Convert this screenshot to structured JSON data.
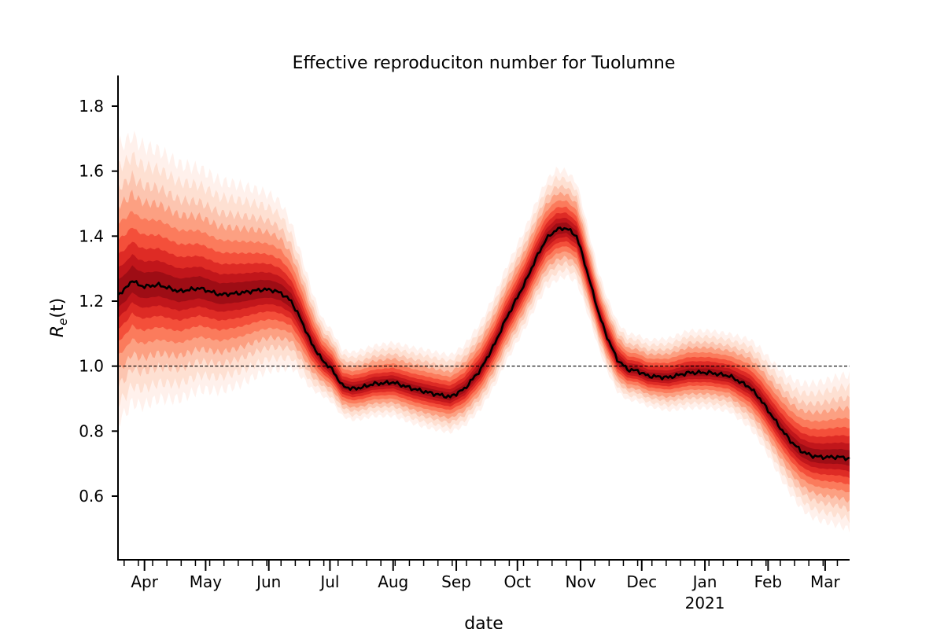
{
  "chart_data": {
    "type": "area",
    "title": "Effective reproduciton number for Tuolumne",
    "xlabel": "date",
    "ylabel_base": "R",
    "ylabel_sub": "e",
    "ylabel_arg": "(t)",
    "ylim": [
      0.4,
      1.9
    ],
    "yticks": [
      0.6,
      0.8,
      1.0,
      1.2,
      1.4,
      1.6,
      1.8
    ],
    "ytick_labels": [
      "0.6",
      "0.8",
      "1.0",
      "1.2",
      "1.4",
      "1.6",
      "1.8"
    ],
    "xlim_days": [
      0,
      359
    ],
    "month_ticks": [
      {
        "day": 13,
        "label": "Apr"
      },
      {
        "day": 43,
        "label": "May"
      },
      {
        "day": 74,
        "label": "Jun"
      },
      {
        "day": 104,
        "label": "Jul"
      },
      {
        "day": 135,
        "label": "Aug"
      },
      {
        "day": 166,
        "label": "Sep"
      },
      {
        "day": 196,
        "label": "Oct"
      },
      {
        "day": 227,
        "label": "Nov"
      },
      {
        "day": 257,
        "label": "Dec"
      },
      {
        "day": 288,
        "label": "Jan"
      },
      {
        "day": 319,
        "label": "Feb"
      },
      {
        "day": 347,
        "label": "Mar"
      }
    ],
    "year_label": "2021",
    "reference_line": 1.0,
    "median": {
      "days": [
        0,
        4,
        7,
        10,
        13,
        20,
        30,
        40,
        50,
        60,
        70,
        75,
        80,
        85,
        90,
        95,
        100,
        105,
        110,
        115,
        120,
        125,
        135,
        145,
        155,
        163,
        170,
        178,
        185,
        190,
        195,
        200,
        205,
        210,
        215,
        220,
        225,
        228,
        232,
        236,
        240,
        245,
        250,
        255,
        260,
        270,
        280,
        290,
        300,
        310,
        315,
        320,
        325,
        330,
        335,
        340,
        345,
        350,
        355,
        359
      ],
      "values": [
        1.22,
        1.24,
        1.265,
        1.25,
        1.245,
        1.25,
        1.23,
        1.24,
        1.22,
        1.225,
        1.235,
        1.235,
        1.225,
        1.2,
        1.14,
        1.07,
        1.02,
        0.99,
        0.94,
        0.93,
        0.935,
        0.945,
        0.95,
        0.93,
        0.915,
        0.905,
        0.93,
        0.99,
        1.07,
        1.14,
        1.2,
        1.26,
        1.33,
        1.39,
        1.42,
        1.425,
        1.4,
        1.34,
        1.25,
        1.16,
        1.09,
        1.02,
        0.99,
        0.985,
        0.97,
        0.965,
        0.98,
        0.98,
        0.97,
        0.935,
        0.9,
        0.855,
        0.81,
        0.77,
        0.74,
        0.725,
        0.72,
        0.72,
        0.72,
        0.715
      ]
    },
    "uncertainty_halfwidth": {
      "days": [
        0,
        20,
        40,
        60,
        80,
        90,
        100,
        110,
        130,
        150,
        165,
        180,
        200,
        215,
        225,
        235,
        250,
        260,
        280,
        300,
        320,
        340,
        359
      ],
      "values": [
        0.5,
        0.45,
        0.4,
        0.36,
        0.3,
        0.22,
        0.14,
        0.12,
        0.13,
        0.14,
        0.14,
        0.16,
        0.18,
        0.2,
        0.18,
        0.14,
        0.12,
        0.12,
        0.14,
        0.14,
        0.18,
        0.24,
        0.28
      ]
    },
    "color": "#cb181d",
    "median_color": "#000000"
  }
}
